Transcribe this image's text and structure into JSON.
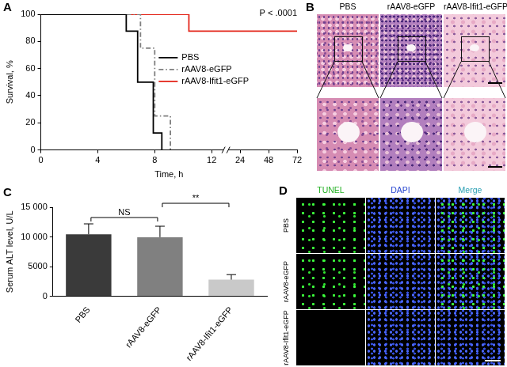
{
  "chart_data": [
    {
      "panel": "A",
      "type": "step",
      "xlabel": "Time, h",
      "ylabel": "Survival, %",
      "xlim": [
        0,
        72
      ],
      "xticks": [
        0,
        4,
        8,
        12,
        24,
        48,
        72
      ],
      "ylim": [
        0,
        100
      ],
      "yticks": [
        0,
        20,
        40,
        60,
        80,
        100
      ],
      "grid": false,
      "legend": "right",
      "annotations": [
        {
          "text": "P < .0001"
        }
      ],
      "series": [
        {
          "name": "PBS",
          "color": "#000000",
          "line_style": "solid",
          "x": [
            0,
            6,
            6.8,
            7.9,
            8.5
          ],
          "values": [
            100,
            87.5,
            50,
            12.5,
            0
          ]
        },
        {
          "name": "rAAV8-eGFP",
          "color": "#7f7f7f",
          "line_style": "dashdot",
          "x": [
            0,
            7,
            8,
            9.1
          ],
          "values": [
            100,
            75,
            25,
            0
          ]
        },
        {
          "name": "rAAV8-Ifit1-eGFP",
          "color": "#e3261b",
          "line_style": "solid",
          "x": [
            0,
            10.4,
            72
          ],
          "values": [
            100,
            87.5,
            87.5
          ]
        }
      ]
    },
    {
      "panel": "C",
      "type": "bar",
      "ylabel": "Serum ALT level, U/L",
      "categories": [
        "PBS",
        "rAAV8-eGFP",
        "rAAV8-Ifit1-eGFP"
      ],
      "values": [
        10450,
        9950,
        2800
      ],
      "errors": [
        1750,
        1850,
        850
      ],
      "colors": [
        "#3a3a3a",
        "#808080",
        "#c9c9c9"
      ],
      "ylim": [
        0,
        15000
      ],
      "yticks": [
        0,
        5000,
        {
          "value": 10000,
          "label": "10 000"
        },
        {
          "value": 15000,
          "label": "15 000"
        }
      ],
      "grid": false,
      "significance": [
        {
          "between": [
            "PBS",
            "rAAV8-eGFP"
          ],
          "text": "NS"
        },
        {
          "between": [
            "rAAV8-eGFP",
            "rAAV8-Ifit1-eGFP"
          ],
          "text": "**"
        }
      ]
    }
  ],
  "panels": [
    {
      "panel": "B",
      "columns": [
        "PBS",
        "rAAV8-eGFP",
        "rAAV8-Ifit1-eGFP"
      ]
    },
    {
      "panel": "D",
      "columns": [
        "TUNEL",
        "DAPI",
        "Merge"
      ],
      "rows": [
        "PBS",
        "rAAV8-eGFP",
        "rAAV8-Ifit1-eGFP"
      ]
    }
  ]
}
